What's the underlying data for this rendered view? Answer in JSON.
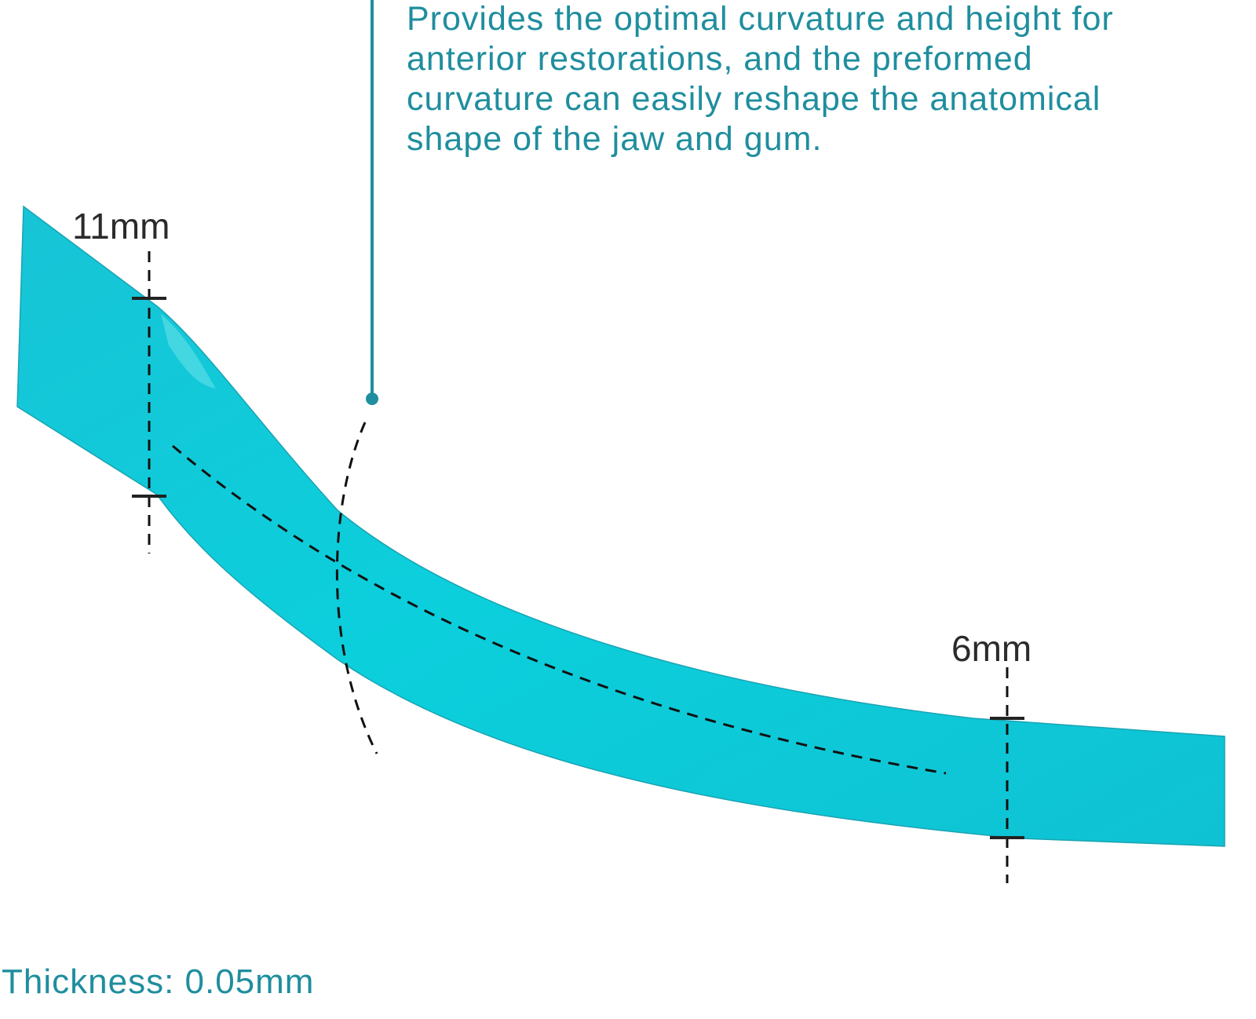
{
  "description": {
    "lines": [
      "Provides the optimal curvature and height for",
      "anterior restorations, and the preformed",
      "curvature can easily reshape the anatomical",
      "shape of the jaw and gum."
    ]
  },
  "dimensions": {
    "wide_end": "11mm",
    "narrow_end": "6mm"
  },
  "thickness": "Thickness: 0.05mm"
}
